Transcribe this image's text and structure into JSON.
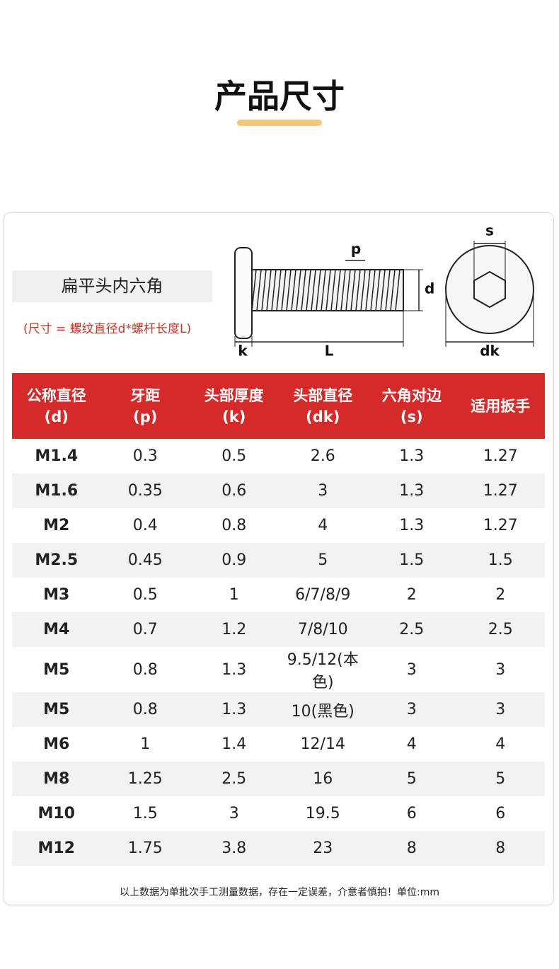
{
  "header": {
    "title": "产品尺寸"
  },
  "product": {
    "name": "扁平头内六角",
    "note": "(尺寸 = 螺纹直径d*螺杆长度L)"
  },
  "diagram": {
    "labels": {
      "p": "p",
      "d": "d",
      "k": "k",
      "L": "L",
      "s": "s",
      "dk": "dk"
    }
  },
  "table": {
    "header": [
      [
        "公称直径",
        "(d)"
      ],
      [
        "牙距",
        "(p)"
      ],
      [
        "头部厚度",
        "(k)"
      ],
      [
        "头部直径",
        "(dk)"
      ],
      [
        "六角对边",
        "(s)"
      ],
      [
        "适用扳手"
      ]
    ],
    "rows": [
      [
        "M1.4",
        "0.3",
        "0.5",
        "2.6",
        "1.3",
        "1.27"
      ],
      [
        "M1.6",
        "0.35",
        "0.6",
        "3",
        "1.3",
        "1.27"
      ],
      [
        "M2",
        "0.4",
        "0.8",
        "4",
        "1.3",
        "1.27"
      ],
      [
        "M2.5",
        "0.45",
        "0.9",
        "5",
        "1.5",
        "1.5"
      ],
      [
        "M3",
        "0.5",
        "1",
        "6/7/8/9",
        "2",
        "2"
      ],
      [
        "M4",
        "0.7",
        "1.2",
        "7/8/10",
        "2.5",
        "2.5"
      ],
      [
        "M5",
        "0.8",
        "1.3",
        "9.5/12(本色)",
        "3",
        "3"
      ],
      [
        "M5",
        "0.8",
        "1.3",
        "10(黑色)",
        "3",
        "3"
      ],
      [
        "M6",
        "1",
        "1.4",
        "12/14",
        "4",
        "4"
      ],
      [
        "M8",
        "1.25",
        "2.5",
        "16",
        "5",
        "5"
      ],
      [
        "M10",
        "1.5",
        "3",
        "19.5",
        "6",
        "6"
      ],
      [
        "M12",
        "1.75",
        "3.8",
        "23",
        "8",
        "8"
      ]
    ]
  },
  "footer": {
    "note": "以上数据为单批次手工测量数据，存在一定误差，介意者慎拍！单位:mm"
  }
}
